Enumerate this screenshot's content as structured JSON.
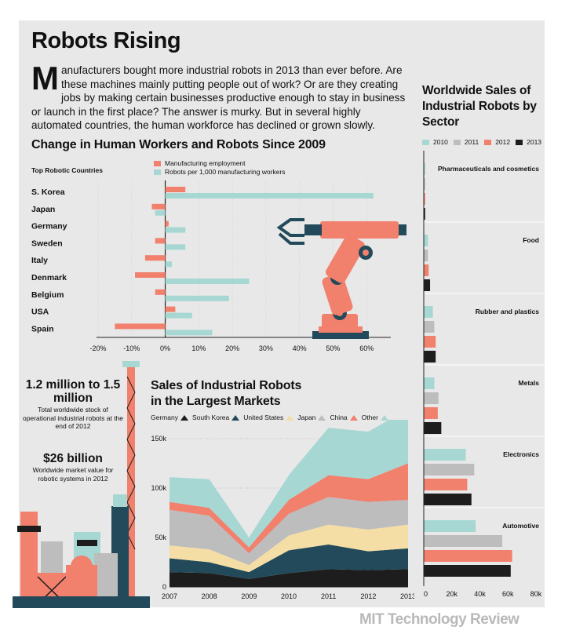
{
  "title": "Robots Rising",
  "intro": {
    "dropcap": "M",
    "text": "anufacturers bought more industrial robots in 2013 than ever before. Are these machines mainly putting people out of work? Or are they creating jobs by making certain businesses productive enough to stay in business or launch in the first place? The answer is murky. But in several highly automated countries, the human workforce has declined or grown slowly."
  },
  "brand": "MIT Technology Review",
  "colors": {
    "salmon": "#f1806c",
    "teal": "#a6d7d3",
    "gray": "#bdbdbd",
    "dark": "#1d1d1d",
    "navy": "#234a5a",
    "yellow": "#f5dea6",
    "lightgray": "#cfcfcf"
  },
  "stats": [
    {
      "value": "1.2 million to 1.5 million",
      "desc": "Total worldwide stock of operational industrial robots at the end of 2012"
    },
    {
      "value": "$26 billion",
      "desc": "Worldwide market value for robotic systems in 2012"
    }
  ],
  "chart_data": [
    {
      "type": "bar",
      "title": "Change in Human Workers and Robots Since 2009",
      "subtitle": "Top Robotic Countries",
      "categories": [
        "S. Korea",
        "Japan",
        "Germany",
        "Sweden",
        "Italy",
        "Denmark",
        "Belgium",
        "USA",
        "Spain"
      ],
      "series": [
        {
          "name": "Manufacturing employment",
          "color": "#f1806c",
          "values": [
            6,
            -4,
            1,
            -3,
            -6,
            -9,
            -3,
            3,
            -15
          ]
        },
        {
          "name": "Robots per 1,000 manufacturing workers",
          "color": "#a6d7d3",
          "values": [
            62,
            -3,
            6,
            6,
            2,
            25,
            19,
            8,
            14
          ]
        }
      ],
      "xticks": [
        "-20%",
        "-10%",
        "0%",
        "10%",
        "20%",
        "30%",
        "40%",
        "50%",
        "60%"
      ],
      "xlim": [
        -20,
        70
      ]
    },
    {
      "type": "area",
      "title": "Sales of Industrial Robots in the Largest Markets",
      "x": [
        "2007",
        "2008",
        "2009",
        "2010",
        "2011",
        "2012",
        "2013"
      ],
      "series": [
        {
          "name": "Germany",
          "color": "#1d1d1d",
          "values": [
            15,
            14,
            8,
            14,
            18,
            17,
            18
          ]
        },
        {
          "name": "South Korea",
          "color": "#234a5a",
          "values": [
            14,
            11,
            7,
            23,
            25,
            19,
            21
          ]
        },
        {
          "name": "United States",
          "color": "#f5dea6",
          "values": [
            13,
            13,
            7,
            15,
            20,
            22,
            24
          ]
        },
        {
          "name": "Japan",
          "color": "#bdbdbd",
          "values": [
            36,
            34,
            12,
            22,
            28,
            28,
            25
          ]
        },
        {
          "name": "China",
          "color": "#f1806c",
          "values": [
            8,
            8,
            6,
            14,
            22,
            23,
            37
          ]
        },
        {
          "name": "Other",
          "color": "#a6d7d3",
          "values": [
            25,
            29,
            10,
            25,
            48,
            48,
            55
          ]
        }
      ],
      "yticks": [
        "0",
        "50k",
        "100k",
        "150k"
      ],
      "ylim": [
        0,
        150
      ]
    },
    {
      "type": "bar",
      "title": "Worldwide Sales of Industrial Robots by Sector",
      "years": [
        "2010",
        "2011",
        "2012",
        "2013"
      ],
      "year_colors": [
        "#a6d7d3",
        "#bdbdbd",
        "#f1806c",
        "#1d1d1d"
      ],
      "sectors": [
        {
          "name": "Pharmaceuticals and cosmetics",
          "values": [
            1,
            1,
            1,
            1
          ]
        },
        {
          "name": "Food",
          "values": [
            3,
            3,
            3.5,
            4.5
          ]
        },
        {
          "name": "Rubber and plastics",
          "values": [
            6.5,
            7.5,
            8.5,
            8.5
          ]
        },
        {
          "name": "Metals",
          "values": [
            7.5,
            10.5,
            10,
            12.5
          ]
        },
        {
          "name": "Electronics",
          "values": [
            30,
            36,
            31,
            34
          ]
        },
        {
          "name": "Automotive",
          "values": [
            37,
            56,
            63,
            62
          ]
        }
      ],
      "xticks": [
        "0",
        "20k",
        "40k",
        "60k",
        "80k"
      ],
      "xlim": [
        0,
        80
      ]
    }
  ]
}
